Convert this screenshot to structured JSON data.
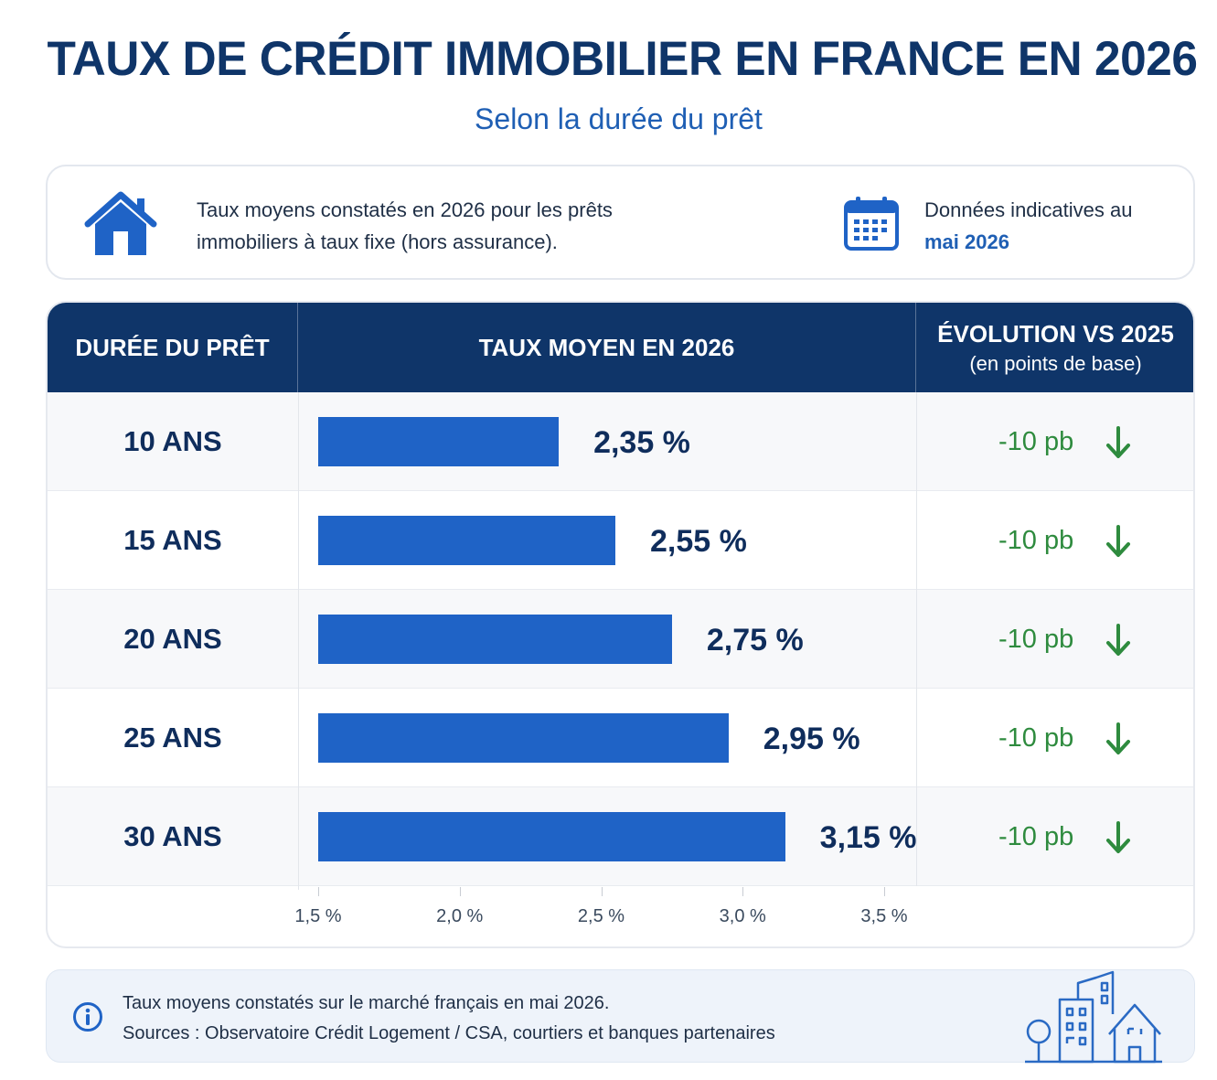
{
  "header": {
    "title": "TAUX DE CRÉDIT IMMOBILIER EN FRANCE EN 2026",
    "subtitle": "Selon la durée du prêt"
  },
  "info": {
    "line1": "Taux moyens constatés en 2026 pour les prêts",
    "line2": "immobiliers à taux fixe (hors assurance).",
    "date_line1": "Données indicatives au",
    "date_line2": "mai 2026"
  },
  "table": {
    "col_duration": "DURÉE DU PRÊT",
    "col_rate": "TAUX MOYEN EN 2026",
    "col_evolution": "ÉVOLUTION VS 2025",
    "col_evolution_sub": "(en points de base)"
  },
  "chart_data": {
    "type": "bar",
    "orientation": "horizontal",
    "categories": [
      "10 ANS",
      "15 ANS",
      "20 ANS",
      "25 ANS",
      "30 ANS"
    ],
    "values": [
      2.35,
      2.55,
      2.75,
      2.95,
      3.15
    ],
    "value_labels": [
      "2,35 %",
      "2,55 %",
      "2,75 %",
      "2,95 %",
      "3,15 %"
    ],
    "evolution_labels": [
      "-10 pb",
      "-10 pb",
      "-10 pb",
      "-10 pb",
      "-10 pb"
    ],
    "evolution": [
      -10,
      -10,
      -10,
      -10,
      -10
    ],
    "x_ticks": [
      1.5,
      2.0,
      2.5,
      3.0,
      3.5
    ],
    "x_tick_labels": [
      "1,5 %",
      "2,0 %",
      "2,5 %",
      "3,0 %",
      "3,5 %"
    ],
    "bar_color": "#1f63c6",
    "evolution_color": "#2e8b3e"
  },
  "footer": {
    "line1": "Taux moyens constatés sur le marché français en mai 2026.",
    "line2": "Sources : Observatoire Crédit Logement / CSA, courtiers et banques partenaires"
  },
  "icons": {
    "house": "house-icon",
    "calendar": "calendar-icon",
    "info": "info-icon",
    "city": "city-illustration-icon",
    "arrow": "arrow-down-icon"
  }
}
